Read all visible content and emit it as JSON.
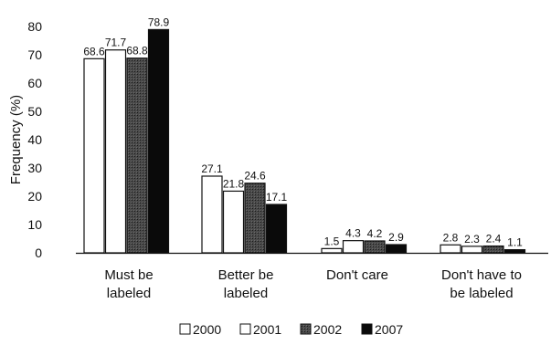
{
  "chart_data": {
    "type": "bar",
    "ylabel": "Frequency (%)",
    "ylim": [
      0,
      80
    ],
    "yticks": [
      0,
      10,
      20,
      30,
      40,
      50,
      60,
      70,
      80
    ],
    "categories": [
      [
        "Must be",
        "labeled"
      ],
      [
        "Better be",
        "labeled"
      ],
      [
        "Don't care"
      ],
      [
        "Don't have to",
        "be labeled"
      ]
    ],
    "series": [
      {
        "name": "2000",
        "values": [
          68.6,
          27.1,
          1.5,
          2.8
        ],
        "color": "#ffffff"
      },
      {
        "name": "2001",
        "values": [
          71.7,
          21.8,
          4.3,
          2.3
        ],
        "color": "#ffffff"
      },
      {
        "name": "2002",
        "values": [
          68.8,
          24.6,
          4.2,
          2.4
        ],
        "color": "#3a3a3a"
      },
      {
        "name": "2007",
        "values": [
          78.9,
          17.1,
          2.9,
          1.1
        ],
        "color": "#0a0a0a"
      }
    ],
    "legend_position": "bottom",
    "grid": false
  }
}
